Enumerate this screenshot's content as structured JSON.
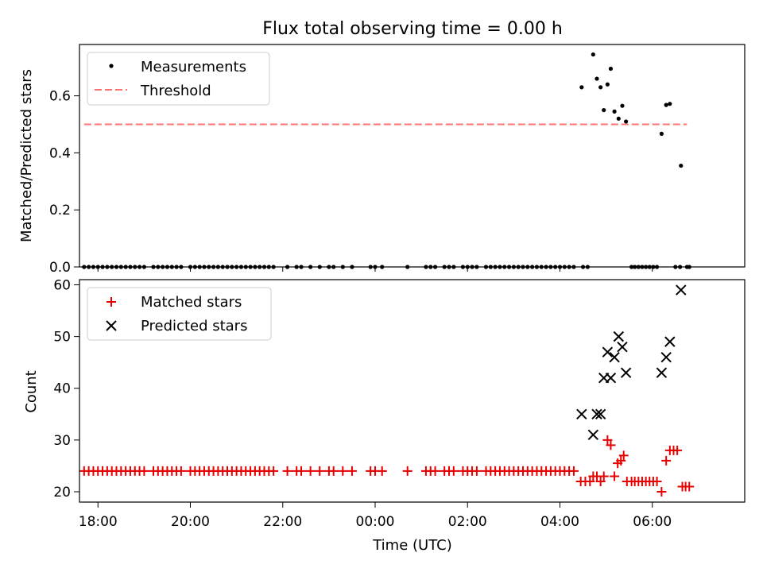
{
  "chart_data": [
    {
      "type": "scatter",
      "title": "Flux total observing time = 0.00 h",
      "xlabel": "",
      "ylabel": "Matched/Predicted stars",
      "xlim_hours": [
        -6.4,
        8.0
      ],
      "ylim": [
        0,
        0.78
      ],
      "yticks": [
        0.0,
        0.2,
        0.4,
        0.6
      ],
      "ytick_labels": [
        "0.0",
        "0.2",
        "0.4",
        "0.6"
      ],
      "legend_position": "upper-left",
      "colors": {
        "measurements": "#000000",
        "threshold": "#ff7373"
      },
      "series": [
        {
          "name": "Measurements",
          "marker": "dot",
          "points": [
            [
              4.47,
              0.63
            ],
            [
              4.72,
              0.745
            ],
            [
              4.8,
              0.66
            ],
            [
              4.88,
              0.63
            ],
            [
              4.95,
              0.55
            ],
            [
              5.03,
              0.64
            ],
            [
              5.1,
              0.695
            ],
            [
              5.18,
              0.545
            ],
            [
              5.27,
              0.52
            ],
            [
              5.35,
              0.565
            ],
            [
              5.43,
              0.51
            ],
            [
              6.2,
              0.467
            ],
            [
              6.3,
              0.568
            ],
            [
              6.38,
              0.572
            ],
            [
              6.62,
              0.355
            ],
            [
              -6.3,
              0
            ],
            [
              -6.2,
              0
            ],
            [
              -6.1,
              0
            ],
            [
              -6.0,
              0
            ],
            [
              -5.9,
              0
            ],
            [
              -5.8,
              0
            ],
            [
              -5.7,
              0
            ],
            [
              -5.6,
              0
            ],
            [
              -5.5,
              0
            ],
            [
              -5.4,
              0
            ],
            [
              -5.3,
              0
            ],
            [
              -5.2,
              0
            ],
            [
              -5.1,
              0
            ],
            [
              -5.0,
              0
            ],
            [
              -4.8,
              0
            ],
            [
              -4.7,
              0
            ],
            [
              -4.6,
              0
            ],
            [
              -4.5,
              0
            ],
            [
              -4.4,
              0
            ],
            [
              -4.3,
              0
            ],
            [
              -4.2,
              0
            ],
            [
              -4.0,
              0
            ],
            [
              -3.9,
              0
            ],
            [
              -3.8,
              0
            ],
            [
              -3.7,
              0
            ],
            [
              -3.6,
              0
            ],
            [
              -3.5,
              0
            ],
            [
              -3.4,
              0
            ],
            [
              -3.3,
              0
            ],
            [
              -3.2,
              0
            ],
            [
              -3.1,
              0
            ],
            [
              -3.0,
              0
            ],
            [
              -2.9,
              0
            ],
            [
              -2.8,
              0
            ],
            [
              -2.7,
              0
            ],
            [
              -2.6,
              0
            ],
            [
              -2.5,
              0
            ],
            [
              -2.4,
              0
            ],
            [
              -2.3,
              0
            ],
            [
              -2.2,
              0
            ],
            [
              -1.9,
              0
            ],
            [
              -1.7,
              0
            ],
            [
              -1.6,
              0
            ],
            [
              -1.4,
              0
            ],
            [
              -1.2,
              0
            ],
            [
              -1.0,
              0
            ],
            [
              -0.9,
              0
            ],
            [
              -0.7,
              0
            ],
            [
              -0.5,
              0
            ],
            [
              -0.1,
              0
            ],
            [
              0.0,
              0
            ],
            [
              0.15,
              0
            ],
            [
              0.7,
              0
            ],
            [
              1.1,
              0
            ],
            [
              1.2,
              0
            ],
            [
              1.3,
              0
            ],
            [
              1.5,
              0
            ],
            [
              1.6,
              0
            ],
            [
              1.7,
              0
            ],
            [
              1.9,
              0
            ],
            [
              2.0,
              0
            ],
            [
              2.1,
              0
            ],
            [
              2.2,
              0
            ],
            [
              2.4,
              0
            ],
            [
              2.5,
              0
            ],
            [
              2.6,
              0
            ],
            [
              2.7,
              0
            ],
            [
              2.8,
              0
            ],
            [
              2.9,
              0
            ],
            [
              3.0,
              0
            ],
            [
              3.1,
              0
            ],
            [
              3.2,
              0
            ],
            [
              3.3,
              0
            ],
            [
              3.4,
              0
            ],
            [
              3.5,
              0
            ],
            [
              3.6,
              0
            ],
            [
              3.7,
              0
            ],
            [
              3.8,
              0
            ],
            [
              3.9,
              0
            ],
            [
              4.0,
              0
            ],
            [
              4.1,
              0
            ],
            [
              4.2,
              0
            ],
            [
              4.3,
              0
            ],
            [
              4.5,
              0
            ],
            [
              4.6,
              0
            ],
            [
              5.55,
              0
            ],
            [
              5.62,
              0
            ],
            [
              5.7,
              0
            ],
            [
              5.78,
              0
            ],
            [
              5.86,
              0
            ],
            [
              5.94,
              0
            ],
            [
              6.02,
              0
            ],
            [
              6.1,
              0
            ],
            [
              6.5,
              0
            ],
            [
              6.6,
              0
            ],
            [
              6.75,
              0
            ],
            [
              6.8,
              0
            ]
          ]
        },
        {
          "name": "Threshold",
          "marker": "dashed-line",
          "points": [
            [
              -6.3,
              0.5
            ],
            [
              6.75,
              0.5
            ]
          ]
        }
      ]
    },
    {
      "type": "scatter",
      "title": "",
      "xlabel": "Time (UTC)",
      "ylabel": "Count",
      "xlim_hours": [
        -6.4,
        8.0
      ],
      "ylim": [
        18.0,
        61.0
      ],
      "yticks": [
        20,
        30,
        40,
        50,
        60
      ],
      "ytick_labels": [
        "20",
        "30",
        "40",
        "50",
        "60"
      ],
      "xticks_hours": [
        -6,
        -4,
        -2,
        0,
        2,
        4,
        6
      ],
      "xtick_labels": [
        "18:00",
        "20:00",
        "22:00",
        "00:00",
        "02:00",
        "04:00",
        "06:00"
      ],
      "legend_position": "upper-left",
      "colors": {
        "matched": "#e60000",
        "predicted": "#000000"
      },
      "series": [
        {
          "name": "Matched stars",
          "marker": "plus",
          "points": [
            [
              -6.3,
              24
            ],
            [
              -6.2,
              24
            ],
            [
              -6.1,
              24
            ],
            [
              -6.0,
              24
            ],
            [
              -5.9,
              24
            ],
            [
              -5.8,
              24
            ],
            [
              -5.7,
              24
            ],
            [
              -5.6,
              24
            ],
            [
              -5.5,
              24
            ],
            [
              -5.4,
              24
            ],
            [
              -5.3,
              24
            ],
            [
              -5.2,
              24
            ],
            [
              -5.1,
              24
            ],
            [
              -5.0,
              24
            ],
            [
              -4.8,
              24
            ],
            [
              -4.7,
              24
            ],
            [
              -4.6,
              24
            ],
            [
              -4.5,
              24
            ],
            [
              -4.4,
              24
            ],
            [
              -4.3,
              24
            ],
            [
              -4.2,
              24
            ],
            [
              -4.0,
              24
            ],
            [
              -3.9,
              24
            ],
            [
              -3.8,
              24
            ],
            [
              -3.7,
              24
            ],
            [
              -3.6,
              24
            ],
            [
              -3.5,
              24
            ],
            [
              -3.4,
              24
            ],
            [
              -3.3,
              24
            ],
            [
              -3.2,
              24
            ],
            [
              -3.1,
              24
            ],
            [
              -3.0,
              24
            ],
            [
              -2.9,
              24
            ],
            [
              -2.8,
              24
            ],
            [
              -2.7,
              24
            ],
            [
              -2.6,
              24
            ],
            [
              -2.5,
              24
            ],
            [
              -2.4,
              24
            ],
            [
              -2.3,
              24
            ],
            [
              -2.2,
              24
            ],
            [
              -1.9,
              24
            ],
            [
              -1.7,
              24
            ],
            [
              -1.6,
              24
            ],
            [
              -1.4,
              24
            ],
            [
              -1.2,
              24
            ],
            [
              -1.0,
              24
            ],
            [
              -0.9,
              24
            ],
            [
              -0.7,
              24
            ],
            [
              -0.5,
              24
            ],
            [
              -0.1,
              24
            ],
            [
              0.0,
              24
            ],
            [
              0.15,
              24
            ],
            [
              0.7,
              24
            ],
            [
              1.1,
              24
            ],
            [
              1.2,
              24
            ],
            [
              1.3,
              24
            ],
            [
              1.5,
              24
            ],
            [
              1.6,
              24
            ],
            [
              1.7,
              24
            ],
            [
              1.9,
              24
            ],
            [
              2.0,
              24
            ],
            [
              2.1,
              24
            ],
            [
              2.2,
              24
            ],
            [
              2.4,
              24
            ],
            [
              2.5,
              24
            ],
            [
              2.6,
              24
            ],
            [
              2.7,
              24
            ],
            [
              2.8,
              24
            ],
            [
              2.9,
              24
            ],
            [
              3.0,
              24
            ],
            [
              3.1,
              24
            ],
            [
              3.2,
              24
            ],
            [
              3.3,
              24
            ],
            [
              3.4,
              24
            ],
            [
              3.5,
              24
            ],
            [
              3.6,
              24
            ],
            [
              3.7,
              24
            ],
            [
              3.8,
              24
            ],
            [
              3.9,
              24
            ],
            [
              4.0,
              24
            ],
            [
              4.1,
              24
            ],
            [
              4.2,
              24
            ],
            [
              4.3,
              24
            ],
            [
              4.45,
              22
            ],
            [
              4.55,
              22
            ],
            [
              4.65,
              22
            ],
            [
              4.72,
              23
            ],
            [
              4.8,
              23
            ],
            [
              4.88,
              22
            ],
            [
              4.95,
              23
            ],
            [
              5.03,
              30
            ],
            [
              5.1,
              29
            ],
            [
              5.18,
              23
            ],
            [
              5.25,
              25.5
            ],
            [
              5.32,
              26
            ],
            [
              5.38,
              27
            ],
            [
              5.45,
              22
            ],
            [
              5.55,
              22
            ],
            [
              5.62,
              22
            ],
            [
              5.7,
              22
            ],
            [
              5.78,
              22
            ],
            [
              5.86,
              22
            ],
            [
              5.94,
              22
            ],
            [
              6.02,
              22
            ],
            [
              6.1,
              22
            ],
            [
              6.2,
              20
            ],
            [
              6.3,
              26
            ],
            [
              6.38,
              28
            ],
            [
              6.46,
              28
            ],
            [
              6.54,
              28
            ],
            [
              6.65,
              21
            ],
            [
              6.72,
              21
            ],
            [
              6.8,
              21
            ]
          ]
        },
        {
          "name": "Predicted stars",
          "marker": "x",
          "points": [
            [
              4.47,
              35
            ],
            [
              4.72,
              31
            ],
            [
              4.8,
              35
            ],
            [
              4.88,
              35
            ],
            [
              4.95,
              42
            ],
            [
              5.03,
              47
            ],
            [
              5.1,
              42
            ],
            [
              5.18,
              46
            ],
            [
              5.27,
              50
            ],
            [
              5.35,
              48
            ],
            [
              5.43,
              43
            ],
            [
              6.2,
              43
            ],
            [
              6.3,
              46
            ],
            [
              6.38,
              49
            ],
            [
              6.62,
              59
            ]
          ]
        }
      ]
    }
  ]
}
